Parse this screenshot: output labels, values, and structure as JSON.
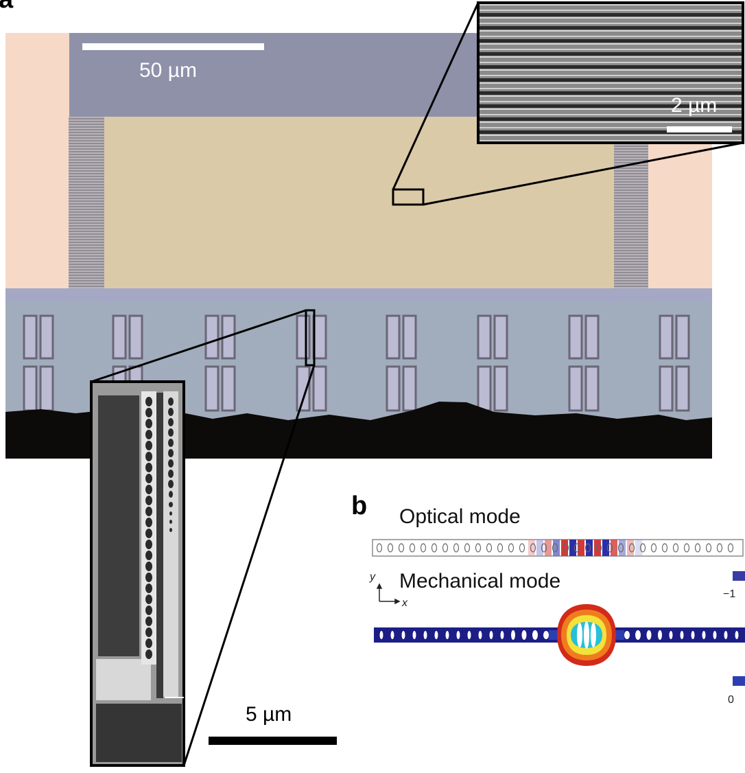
{
  "panel_a": {
    "label": "a",
    "main_scale_label": "50 µm",
    "inset_top_scale_label": "2 µm",
    "inset_bottom_scale_label": "5 µm",
    "device_count": 8
  },
  "panel_b": {
    "label": "b",
    "optical_title": "Optical mode",
    "mechanical_title": "Mechanical mode",
    "axis_y": "y",
    "axis_x": "x",
    "optical_colorbar_min": "−1",
    "mechanical_colorbar_min": "0",
    "colors": {
      "optical_positive": "#d23a3a",
      "optical_negative": "#2b2fa8",
      "mechanical_low": "#1c1e86",
      "mechanical_high": "#d42a1a"
    }
  }
}
